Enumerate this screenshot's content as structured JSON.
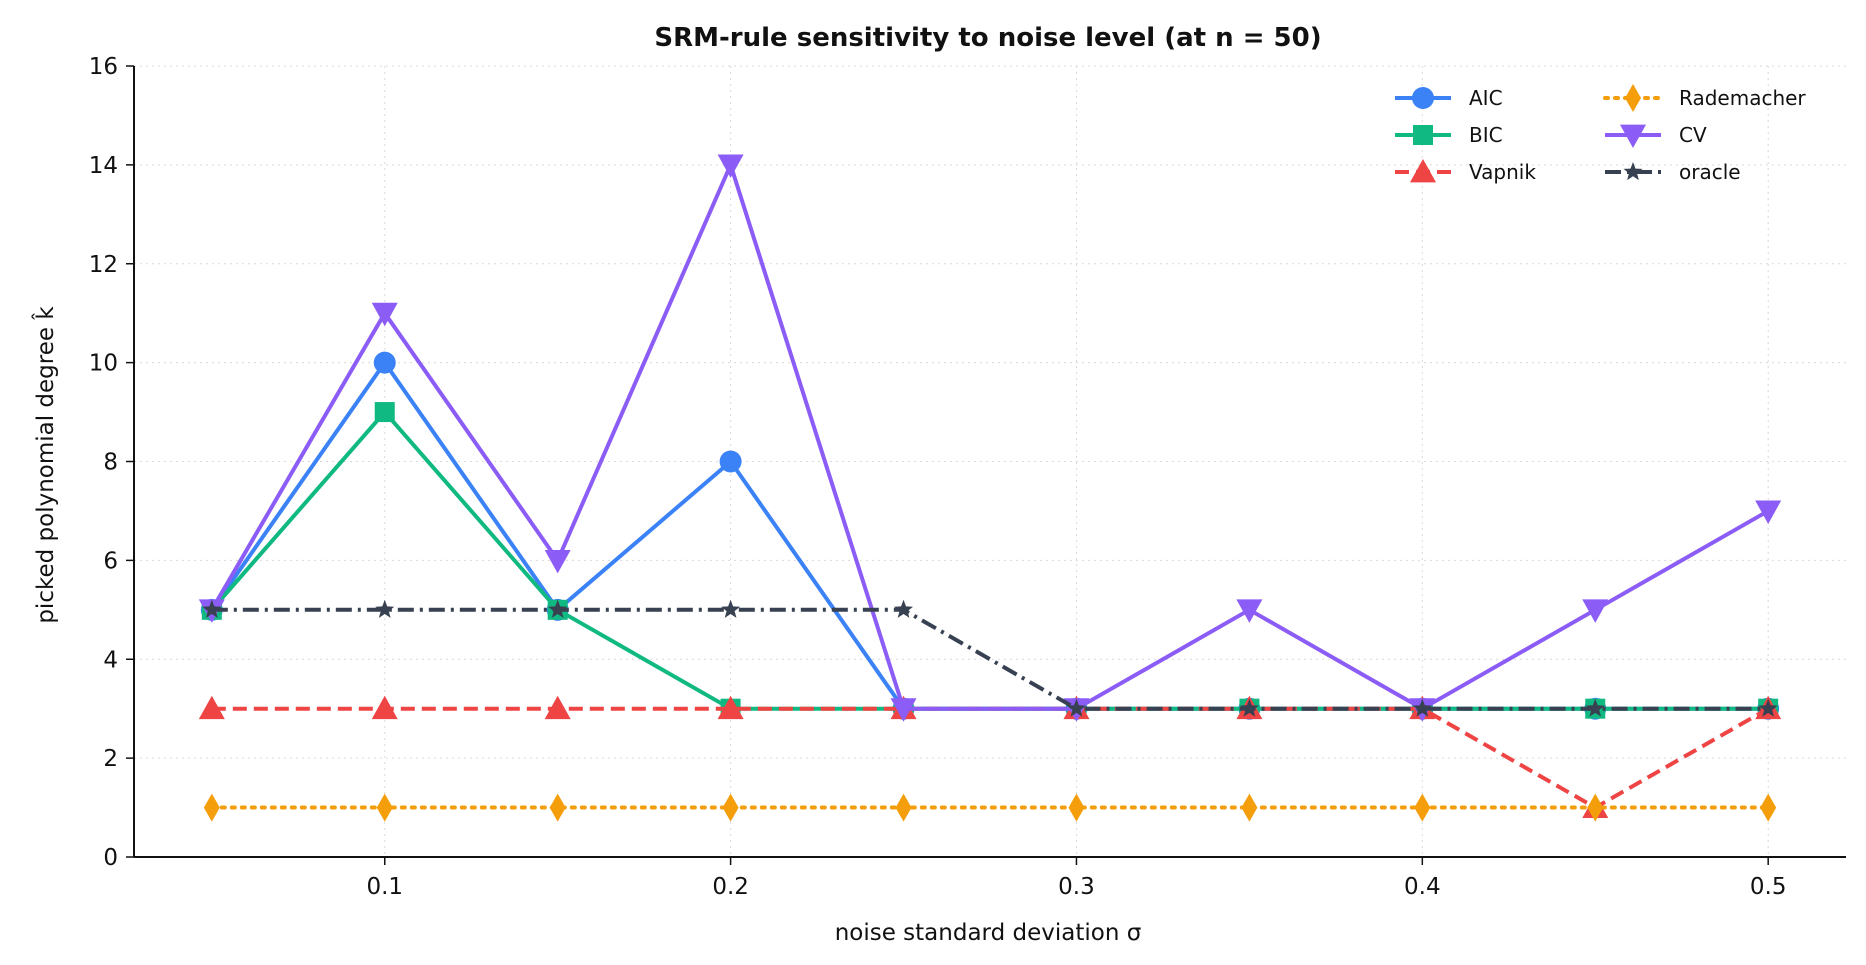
{
  "chart_data": {
    "type": "line",
    "title": "SRM-rule sensitivity to noise level (at n = 50)",
    "xlabel": "noise standard deviation σ",
    "ylabel": "picked polynomial degree k̂",
    "x": [
      0.05,
      0.1,
      0.15,
      0.2,
      0.25,
      0.3,
      0.35,
      0.4,
      0.45,
      0.5
    ],
    "xticks": [
      0.1,
      0.2,
      0.3,
      0.4,
      0.5
    ],
    "xtick_labels": [
      "0.1",
      "0.2",
      "0.3",
      "0.4",
      "0.5"
    ],
    "yticks": [
      0,
      2,
      4,
      6,
      8,
      10,
      12,
      14,
      16
    ],
    "ytick_labels": [
      "0",
      "2",
      "4",
      "6",
      "8",
      "10",
      "12",
      "14",
      "16"
    ],
    "xlim": [
      0.0275,
      0.5225
    ],
    "ylim": [
      0,
      16
    ],
    "grid": true,
    "legend_position": "top-right",
    "series": [
      {
        "name": "AIC",
        "color": "#3b82f6",
        "dash": "solid",
        "marker": "circle",
        "values": [
          5,
          10,
          5,
          8,
          3,
          3,
          3,
          3,
          3,
          3
        ]
      },
      {
        "name": "BIC",
        "color": "#10b981",
        "dash": "solid",
        "marker": "square",
        "values": [
          5,
          9,
          5,
          3,
          3,
          3,
          3,
          3,
          3,
          3
        ]
      },
      {
        "name": "Vapnik",
        "color": "#ef4444",
        "dash": "dashed",
        "marker": "triangle-up",
        "values": [
          3,
          3,
          3,
          3,
          3,
          3,
          3,
          3,
          1,
          3
        ]
      },
      {
        "name": "Rademacher",
        "color": "#f59e0b",
        "dash": "dotted",
        "marker": "diamond",
        "values": [
          1,
          1,
          1,
          1,
          1,
          1,
          1,
          1,
          1,
          1
        ]
      },
      {
        "name": "CV",
        "color": "#8b5cf6",
        "dash": "solid",
        "marker": "triangle-down",
        "values": [
          5,
          11,
          6,
          14,
          3,
          3,
          5,
          3,
          5,
          7
        ]
      },
      {
        "name": "oracle",
        "color": "#374151",
        "dash": "dashdot",
        "marker": "star",
        "values": [
          5,
          5,
          5,
          5,
          5,
          3,
          3,
          3,
          3,
          3
        ]
      }
    ]
  }
}
